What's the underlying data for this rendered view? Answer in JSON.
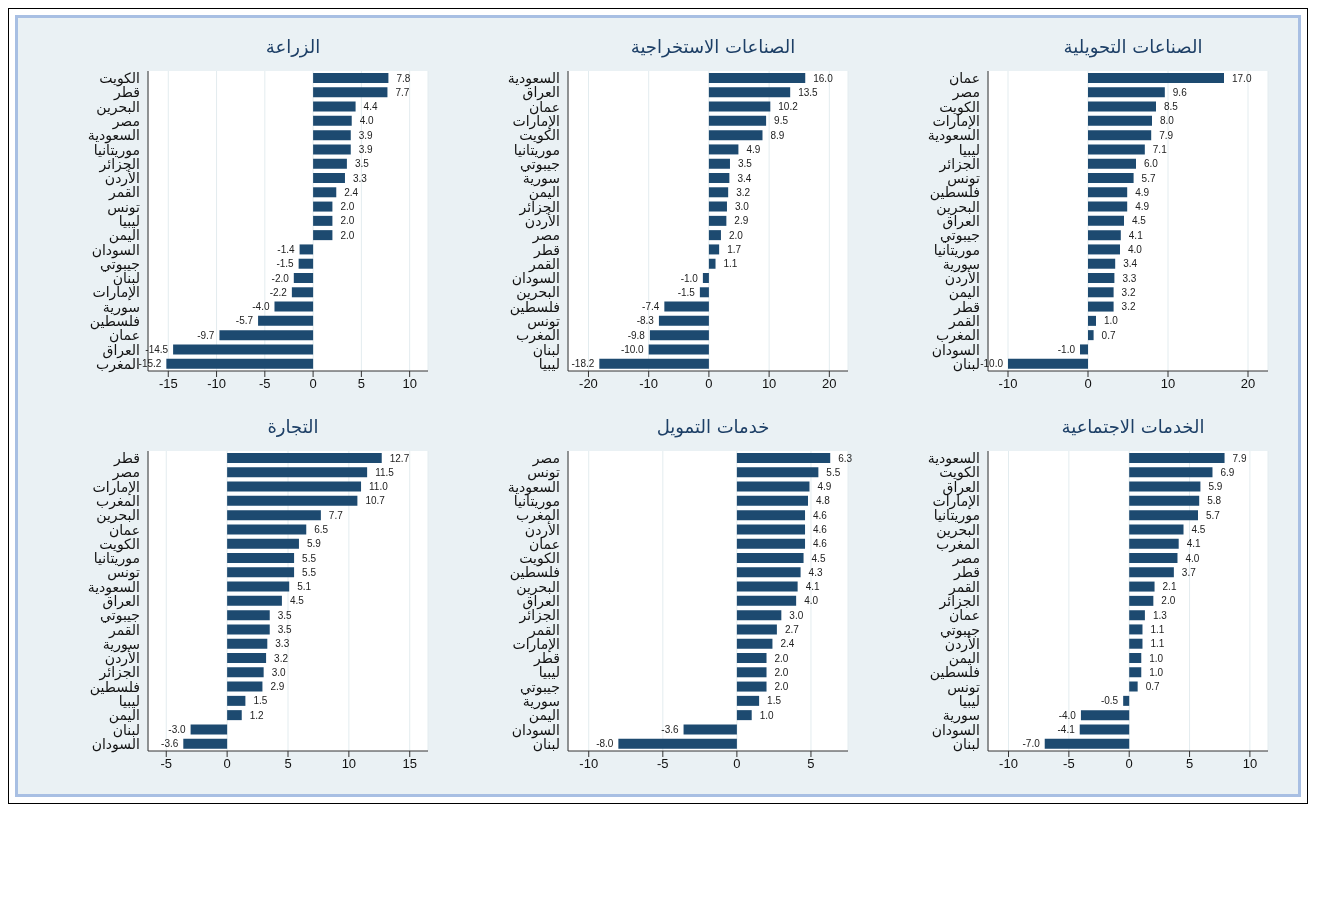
{
  "chart_data": [
    {
      "type": "bar",
      "orientation": "horizontal",
      "title": "الزراعة",
      "categories": [
        "الكويت",
        "قطر",
        "البحرين",
        "مصر",
        "السعودية",
        "موريتانيا",
        "الجزائر",
        "الأردن",
        "القمر",
        "تونس",
        "ليبيا",
        "اليمن",
        "السودان",
        "جيبوتي",
        "لبنان",
        "الإمارات",
        "سورية",
        "فلسطين",
        "عمان",
        "العراق",
        "المغرب"
      ],
      "values": [
        7.8,
        7.7,
        4.4,
        4.0,
        3.9,
        3.9,
        3.5,
        3.3,
        2.4,
        2.0,
        2.0,
        2.0,
        -1.4,
        -1.5,
        -2.0,
        -2.2,
        -4.0,
        -5.7,
        -9.7,
        -14.5,
        -15.2
      ],
      "value_labels": [
        "7.8",
        "7.7",
        "4.4",
        "4.0",
        "3.9",
        "3.9",
        "3.5",
        "3.3",
        "2.4",
        "2.0",
        "2.0",
        "2.0",
        "-1.4",
        "-1.5",
        "-2.0",
        "-2.2",
        "-4.0",
        "-5.7",
        "-9.7",
        "-14.5",
        "-15.2"
      ],
      "color": "#1d4a70",
      "xlim": [
        -17.1,
        11.9
      ],
      "xticks": [
        -15,
        -10,
        -5,
        0,
        5,
        10
      ],
      "grid": "x"
    },
    {
      "type": "bar",
      "orientation": "horizontal",
      "title": "الصناعات الاستخراجية",
      "categories": [
        "السعودية",
        "العراق",
        "عمان",
        "الإمارات",
        "الكويت",
        "موريتانيا",
        "جيبوتي",
        "سورية",
        "اليمن",
        "الجزائر",
        "الأردن",
        "مصر",
        "قطر",
        "القمر",
        "السودان",
        "البحرين",
        "فلسطين",
        "تونس",
        "المغرب",
        "لبنان",
        "ليبيا"
      ],
      "values": [
        16.0,
        13.5,
        10.2,
        9.5,
        8.9,
        4.9,
        3.5,
        3.4,
        3.2,
        3.0,
        2.9,
        2.0,
        1.7,
        1.1,
        -1.0,
        -1.5,
        -7.4,
        -8.3,
        -9.8,
        -10.0,
        -18.2
      ],
      "value_labels": [
        "16.0",
        "13.5",
        "10.2",
        "9.5",
        "8.9",
        "4.9",
        "3.5",
        "3.4",
        "3.2",
        "3.0",
        "2.9",
        "2.0",
        "1.7",
        "1.1",
        "-1.0",
        "-1.5",
        "-7.4",
        "-8.3",
        "-9.8",
        "-10.0",
        "-18.2"
      ],
      "color": "#1d4a70",
      "xlim": [
        -23.4,
        23.1
      ],
      "xticks": [
        -20,
        -10,
        0,
        10,
        20
      ],
      "grid": "x"
    },
    {
      "type": "bar",
      "orientation": "horizontal",
      "title": "الصناعات التحويلية",
      "categories": [
        "عمان",
        "مصر",
        "الكويت",
        "الإمارات",
        "السعودية",
        "ليبيا",
        "الجزائر",
        "تونس",
        "فلسطين",
        "البحرين",
        "العراق",
        "جيبوتي",
        "موريتانيا",
        "سورية",
        "الأردن",
        "اليمن",
        "قطر",
        "القمر",
        "المغرب",
        "السودان",
        "لبنان"
      ],
      "values": [
        17.0,
        9.6,
        8.5,
        8.0,
        7.9,
        7.1,
        6.0,
        5.7,
        4.9,
        4.9,
        4.5,
        4.1,
        4.0,
        3.4,
        3.3,
        3.2,
        3.2,
        1.0,
        0.7,
        -1.0,
        -10.0
      ],
      "value_labels": [
        "17.0",
        "9.6",
        "8.5",
        "8.0",
        "7.9",
        "7.1",
        "6.0",
        "5.7",
        "4.9",
        "4.9",
        "4.5",
        "4.1",
        "4.0",
        "3.4",
        "3.3",
        "3.2",
        "3.2",
        "1.0",
        "0.7",
        "-1.0",
        "-10.0"
      ],
      "color": "#1d4a70",
      "xlim": [
        -12.5,
        22.5
      ],
      "xticks": [
        -10,
        0,
        10,
        20
      ],
      "grid": "x"
    },
    {
      "type": "bar",
      "orientation": "horizontal",
      "title": "التجارة",
      "categories": [
        "قطر",
        "مصر",
        "الإمارات",
        "المغرب",
        "البحرين",
        "عمان",
        "الكويت",
        "موريتانيا",
        "تونس",
        "السعودية",
        "العراق",
        "جيبوتي",
        "القمر",
        "سورية",
        "الأردن",
        "الجزائر",
        "فلسطين",
        "ليبيا",
        "اليمن",
        "لبنان",
        "السودان"
      ],
      "values": [
        12.7,
        11.5,
        11.0,
        10.7,
        7.7,
        6.5,
        5.9,
        5.5,
        5.5,
        5.1,
        4.5,
        3.5,
        3.5,
        3.3,
        3.2,
        3.0,
        2.9,
        1.5,
        1.2,
        -3.0,
        -3.6
      ],
      "value_labels": [
        "12.7",
        "11.5",
        "11.0",
        "10.7",
        "7.7",
        "6.5",
        "5.9",
        "5.5",
        "5.5",
        "5.1",
        "4.5",
        "3.5",
        "3.5",
        "3.3",
        "3.2",
        "3.0",
        "2.9",
        "1.5",
        "1.2",
        "-3.0",
        "-3.6"
      ],
      "color": "#1d4a70",
      "xlim": [
        -6.5,
        16.5
      ],
      "xticks": [
        -5,
        0,
        5,
        10,
        15
      ],
      "grid": "x"
    },
    {
      "type": "bar",
      "orientation": "horizontal",
      "title": "خدمات التمويل",
      "categories": [
        "مصر",
        "تونس",
        "السعودية",
        "موريتانيا",
        "المغرب",
        "الأردن",
        "عمان",
        "الكويت",
        "فلسطين",
        "البحرين",
        "العراق",
        "الجزائر",
        "القمر",
        "الإمارات",
        "قطر",
        "ليبيا",
        "جيبوتي",
        "سورية",
        "اليمن",
        "السودان",
        "لبنان"
      ],
      "values": [
        6.3,
        5.5,
        4.9,
        4.8,
        4.6,
        4.6,
        4.6,
        4.5,
        4.3,
        4.1,
        4.0,
        3.0,
        2.7,
        2.4,
        2.0,
        2.0,
        2.0,
        1.5,
        1.0,
        -3.6,
        -8.0
      ],
      "value_labels": [
        "6.3",
        "5.5",
        "4.9",
        "4.8",
        "4.6",
        "4.6",
        "4.6",
        "4.5",
        "4.3",
        "4.1",
        "4.0",
        "3.0",
        "2.7",
        "2.4",
        "2.0",
        "2.0",
        "2.0",
        "1.5",
        "1.0",
        "-3.6",
        "-8.0"
      ],
      "color": "#1d4a70",
      "xlim": [
        -11.4,
        7.5
      ],
      "xticks": [
        -10,
        -5,
        0,
        5
      ],
      "grid": "x"
    },
    {
      "type": "bar",
      "orientation": "horizontal",
      "title": "الخدمات الاجتماعية",
      "categories": [
        "السعودية",
        "الكويت",
        "العراق",
        "الإمارات",
        "موريتانيا",
        "البحرين",
        "المغرب",
        "مصر",
        "قطر",
        "القمر",
        "الجزائر",
        "عمان",
        "جيبوتي",
        "الأردن",
        "اليمن",
        "فلسطين",
        "تونس",
        "ليبيا",
        "سورية",
        "السودان",
        "لبنان"
      ],
      "values": [
        7.9,
        6.9,
        5.9,
        5.8,
        5.7,
        4.5,
        4.1,
        4.0,
        3.7,
        2.1,
        2.0,
        1.3,
        1.1,
        1.1,
        1.0,
        1.0,
        0.7,
        -0.5,
        -4.0,
        -4.1,
        -7.0
      ],
      "value_labels": [
        "7.9",
        "6.9",
        "5.9",
        "5.8",
        "5.7",
        "4.5",
        "4.1",
        "4.0",
        "3.7",
        "2.1",
        "2.0",
        "1.3",
        "1.1",
        "1.1",
        "1.0",
        "1.0",
        "0.7",
        "-0.5",
        "-4.0",
        "-4.1",
        "-7.0"
      ],
      "color": "#1d4a70",
      "xlim": [
        -11.7,
        11.5
      ],
      "xticks": [
        -10,
        -5,
        0,
        5,
        10
      ],
      "grid": "x"
    }
  ]
}
